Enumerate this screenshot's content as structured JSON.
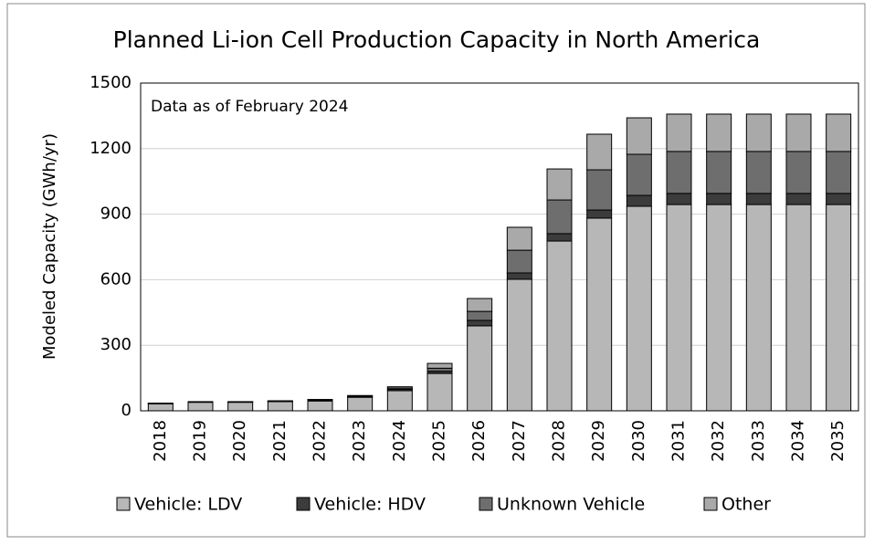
{
  "chart_data": {
    "type": "bar",
    "stacked": true,
    "title": "Planned Li-ion Cell Production Capacity in North America",
    "annotation": "Data as of February 2024",
    "y_label": "Modeled Capacity (GWh/yr)",
    "categories": [
      "2018",
      "2019",
      "2020",
      "2021",
      "2022",
      "2023",
      "2024",
      "2025",
      "2026",
      "2027",
      "2028",
      "2029",
      "2030",
      "2031",
      "2032",
      "2033",
      "2034",
      "2035"
    ],
    "series": [
      {
        "name": "Vehicle: LDV",
        "color": "#b7b7b7",
        "values": [
          32,
          39,
          39,
          42,
          45,
          62,
          92,
          171,
          389,
          602,
          777,
          882,
          936,
          944,
          944,
          944,
          944,
          944
        ]
      },
      {
        "name": "Vehicle: HDV",
        "color": "#3c3c3c",
        "values": [
          1,
          1,
          1,
          1,
          2,
          3,
          6,
          10,
          25,
          29,
          34,
          37,
          50,
          51,
          51,
          51,
          51,
          51
        ]
      },
      {
        "name": "Unknown Vehicle",
        "color": "#6e6e6e",
        "values": [
          1,
          1,
          1,
          2,
          3,
          3,
          6,
          14,
          41,
          104,
          154,
          184,
          188,
          192,
          192,
          192,
          192,
          192
        ]
      },
      {
        "name": "Other",
        "color": "#a9a9a9",
        "values": [
          1,
          1,
          1,
          1,
          2,
          2,
          6,
          22,
          59,
          105,
          142,
          163,
          167,
          171,
          171,
          171,
          171,
          171
        ]
      }
    ],
    "ylim": [
      0,
      1500
    ],
    "yticks": [
      0,
      300,
      600,
      900,
      1200,
      1500
    ],
    "grid": true,
    "legend": "bottom"
  }
}
